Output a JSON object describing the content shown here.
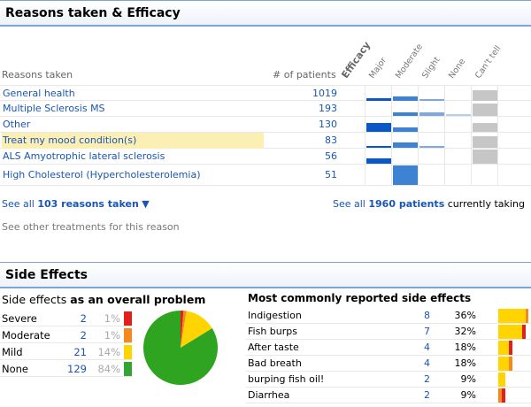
{
  "reasons_section": {
    "title": "Reasons taken & Efficacy",
    "col_reason": "Reasons taken",
    "col_patients": "# of patients",
    "efficacy_title": "Efficacy",
    "efficacy_levels": [
      "Major",
      "Moderate",
      "Slight",
      "None",
      "Can't tell"
    ],
    "rows": [
      {
        "name": "General health",
        "count": "1019",
        "highlight": false,
        "bars": [
          3,
          5,
          2,
          0,
          12
        ]
      },
      {
        "name": "Multiple Sclerosis MS",
        "count": "193",
        "highlight": false,
        "bars": [
          0,
          4,
          4,
          2,
          14
        ]
      },
      {
        "name": "Other",
        "count": "130",
        "highlight": false,
        "bars": [
          10,
          5,
          0,
          0,
          10
        ]
      },
      {
        "name": "Treat my mood condition(s)",
        "count": "83",
        "highlight": true,
        "bars": [
          2,
          6,
          2,
          0,
          13
        ]
      },
      {
        "name": "ALS Amyotrophic lateral sclerosis",
        "count": "56",
        "highlight": false,
        "bars": [
          6,
          0,
          0,
          0,
          18
        ]
      },
      {
        "name": "High Cholesterol (Hypercholesterolemia)",
        "count": "51",
        "highlight": false,
        "bars": [
          0,
          24,
          0,
          0,
          0
        ]
      }
    ],
    "see_all_reasons_prefix": "See all ",
    "see_all_reasons_bold": "103 reasons taken",
    "see_all_reasons_arrow": "▼",
    "see_all_patients_prefix": "See all ",
    "see_all_patients_bold": "1960 patients",
    "see_all_patients_suffix": " currently taking",
    "other_treatments": "See other treatments for this reason"
  },
  "side_effects_section": {
    "title": "Side Effects",
    "overall_prefix": "Side effects ",
    "overall_bold": "as an overall problem",
    "severity": [
      {
        "label": "Severe",
        "count": "2",
        "pct": "1%",
        "color": "#e31f1b"
      },
      {
        "label": "Moderate",
        "count": "2",
        "pct": "1%",
        "color": "#f5891a"
      },
      {
        "label": "Mild",
        "count": "21",
        "pct": "14%",
        "color": "#ffd400"
      },
      {
        "label": "None",
        "count": "129",
        "pct": "84%",
        "color": "#33a531"
      }
    ],
    "pie_colors": {
      "severe": "#e31f1b",
      "moderate": "#f5891a",
      "mild": "#ffd400",
      "none": "#2ea421"
    },
    "common_title": "Most commonly reported side effects",
    "common": [
      {
        "label": "Indigestion",
        "count": "8",
        "pct": "36%",
        "segs": [
          {
            "c": "y",
            "w": 31
          },
          {
            "c": "o",
            "w": 3
          }
        ]
      },
      {
        "label": "Fish burps",
        "count": "7",
        "pct": "32%",
        "segs": [
          {
            "c": "y",
            "w": 27
          },
          {
            "c": "r",
            "w": 4
          }
        ]
      },
      {
        "label": "After taste",
        "count": "4",
        "pct": "18%",
        "segs": [
          {
            "c": "y",
            "w": 12
          },
          {
            "c": "r",
            "w": 4
          }
        ]
      },
      {
        "label": "Bad breath",
        "count": "4",
        "pct": "18%",
        "segs": [
          {
            "c": "y",
            "w": 12
          },
          {
            "c": "o",
            "w": 4
          }
        ]
      },
      {
        "label": "burping fish oil!",
        "count": "2",
        "pct": "9%",
        "segs": [
          {
            "c": "y",
            "w": 8
          }
        ]
      },
      {
        "label": "Diarrhea",
        "count": "2",
        "pct": "9%",
        "segs": [
          {
            "c": "o",
            "w": 4
          },
          {
            "c": "r",
            "w": 4
          }
        ]
      }
    ]
  }
}
